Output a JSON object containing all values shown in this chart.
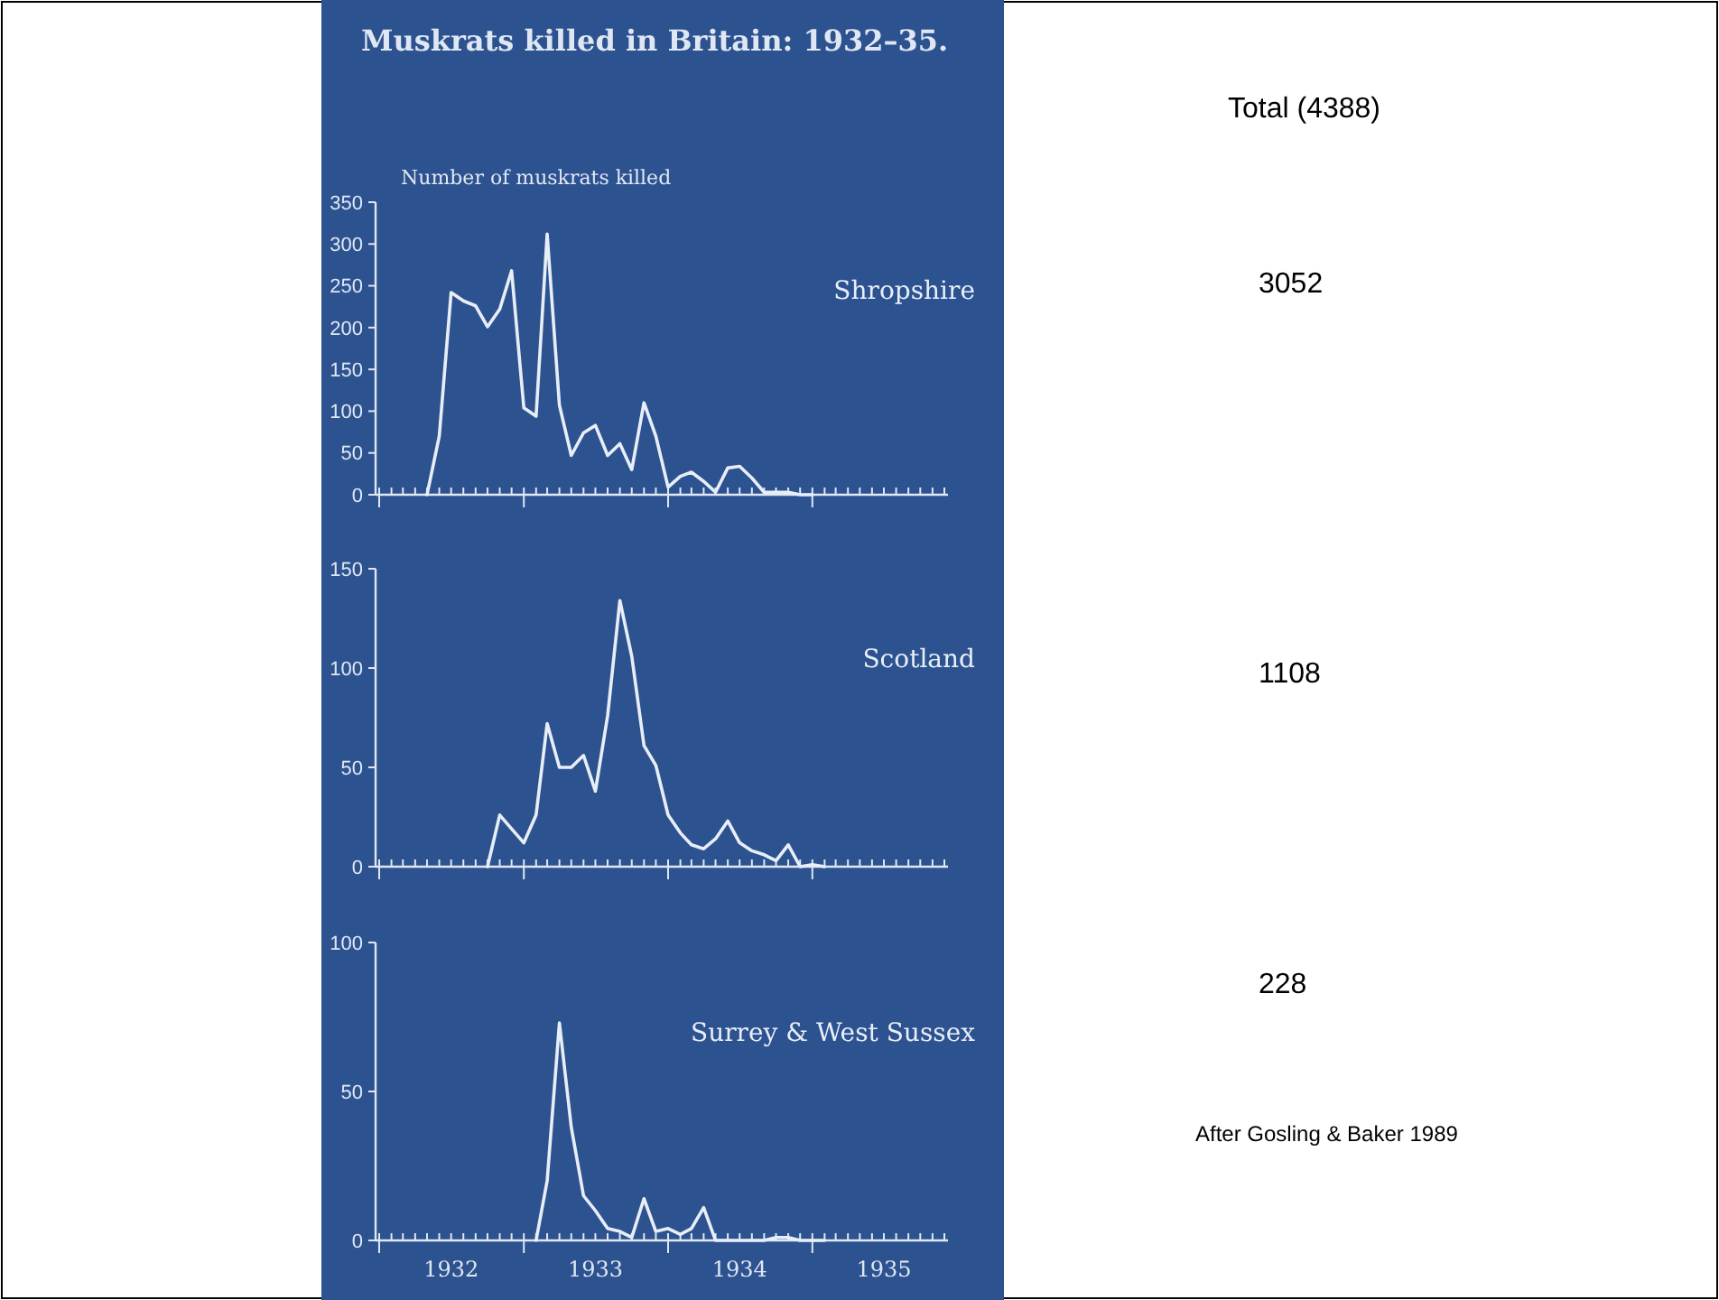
{
  "chart_data": [
    {
      "type": "line",
      "title": "Muskrats killed in Britain: 1932–35.",
      "ylabel": "Number of muskrats killed",
      "annotations": [
        "Total  (4388)",
        "3052"
      ],
      "x": [
        "1932-05",
        "1932-06",
        "1932-07",
        "1932-08",
        "1932-09",
        "1932-10",
        "1932-11",
        "1932-12",
        "1933-01",
        "1933-02",
        "1933-03",
        "1933-04",
        "1933-05",
        "1933-06",
        "1933-07",
        "1933-08",
        "1933-09",
        "1933-10",
        "1933-11",
        "1933-12",
        "1934-01",
        "1934-02",
        "1934-03",
        "1934-04",
        "1934-05",
        "1934-06",
        "1934-07",
        "1934-08",
        "1934-09",
        "1934-10",
        "1934-11",
        "1934-12",
        "1935-01"
      ],
      "series": [
        {
          "name": "Shropshire",
          "color": "#e8eef8",
          "values": [
            0,
            70,
            242,
            232,
            226,
            201,
            222,
            268,
            104,
            94,
            312,
            107,
            47,
            74,
            83,
            47,
            61,
            30,
            110,
            70,
            9,
            22,
            27,
            16,
            3,
            32,
            34,
            20,
            3,
            3,
            3,
            0,
            0
          ]
        }
      ],
      "xlim": [
        "1932-01",
        "1935-12"
      ],
      "xticks": [
        {
          "value": "1932-01",
          "label": null
        },
        {
          "value": "1933-01",
          "label": null
        },
        {
          "value": "1934-01",
          "label": null
        },
        {
          "value": "1935-01",
          "label": null
        }
      ],
      "tick_labels": "y",
      "ylim": [
        0,
        350
      ],
      "yticks": [
        0,
        50,
        100,
        150,
        200,
        250,
        300,
        350
      ]
    },
    {
      "type": "line",
      "annotations": [
        "1108"
      ],
      "x": [
        "1932-10",
        "1932-11",
        "1932-12",
        "1933-01",
        "1933-02",
        "1933-03",
        "1933-04",
        "1933-05",
        "1933-06",
        "1933-07",
        "1933-08",
        "1933-09",
        "1933-10",
        "1933-11",
        "1933-12",
        "1934-01",
        "1934-02",
        "1934-03",
        "1934-04",
        "1934-05",
        "1934-06",
        "1934-07",
        "1934-08",
        "1934-09",
        "1934-10",
        "1934-11",
        "1934-12",
        "1935-01",
        "1935-02"
      ],
      "series": [
        {
          "name": "Scotland",
          "color": "#e8eef8",
          "values": [
            0,
            26,
            19,
            12,
            26,
            72,
            50,
            50,
            56,
            38,
            76,
            134,
            106,
            61,
            51,
            26,
            17,
            11,
            9,
            14,
            23,
            12,
            8,
            6,
            3,
            11,
            0,
            1,
            0
          ]
        }
      ],
      "xlim": [
        "1932-01",
        "1935-12"
      ],
      "xticks": [
        {
          "value": "1932-01",
          "label": null
        },
        {
          "value": "1933-01",
          "label": null
        },
        {
          "value": "1934-01",
          "label": null
        },
        {
          "value": "1935-01",
          "label": null
        }
      ],
      "tick_labels": "y",
      "ylim": [
        0,
        150
      ],
      "yticks": [
        0,
        50,
        100,
        150
      ]
    },
    {
      "type": "line",
      "annotations": [
        "228",
        "After Gosling & Baker 1989"
      ],
      "x": [
        "1933-02",
        "1933-03",
        "1933-04",
        "1933-05",
        "1933-06",
        "1933-07",
        "1933-08",
        "1933-09",
        "1933-10",
        "1933-11",
        "1933-12",
        "1934-01",
        "1934-02",
        "1934-03",
        "1934-04",
        "1934-05",
        "1934-06",
        "1934-07",
        "1934-08",
        "1934-09",
        "1934-10",
        "1934-11",
        "1934-12",
        "1935-01",
        "1935-02"
      ],
      "series": [
        {
          "name": "Surrey & West Sussex",
          "color": "#e8eef8",
          "values": [
            0,
            20,
            73,
            38,
            15,
            10,
            4,
            3,
            1,
            14,
            3,
            4,
            2,
            4,
            11,
            0,
            0,
            0,
            0,
            0,
            1,
            1,
            0,
            0,
            0
          ]
        }
      ],
      "xlim": [
        "1932-01",
        "1935-12"
      ],
      "xticks": [
        {
          "value": "1932-01",
          "label": null
        },
        {
          "value": "1932-07",
          "label": "1932"
        },
        {
          "value": "1933-01",
          "label": null
        },
        {
          "value": "1933-07",
          "label": "1933"
        },
        {
          "value": "1934-01",
          "label": null
        },
        {
          "value": "1934-07",
          "label": "1934"
        },
        {
          "value": "1935-01",
          "label": null
        },
        {
          "value": "1935-07",
          "label": "1935"
        }
      ],
      "ylim": [
        0,
        100
      ],
      "yticks": [
        0,
        50,
        100
      ]
    }
  ]
}
